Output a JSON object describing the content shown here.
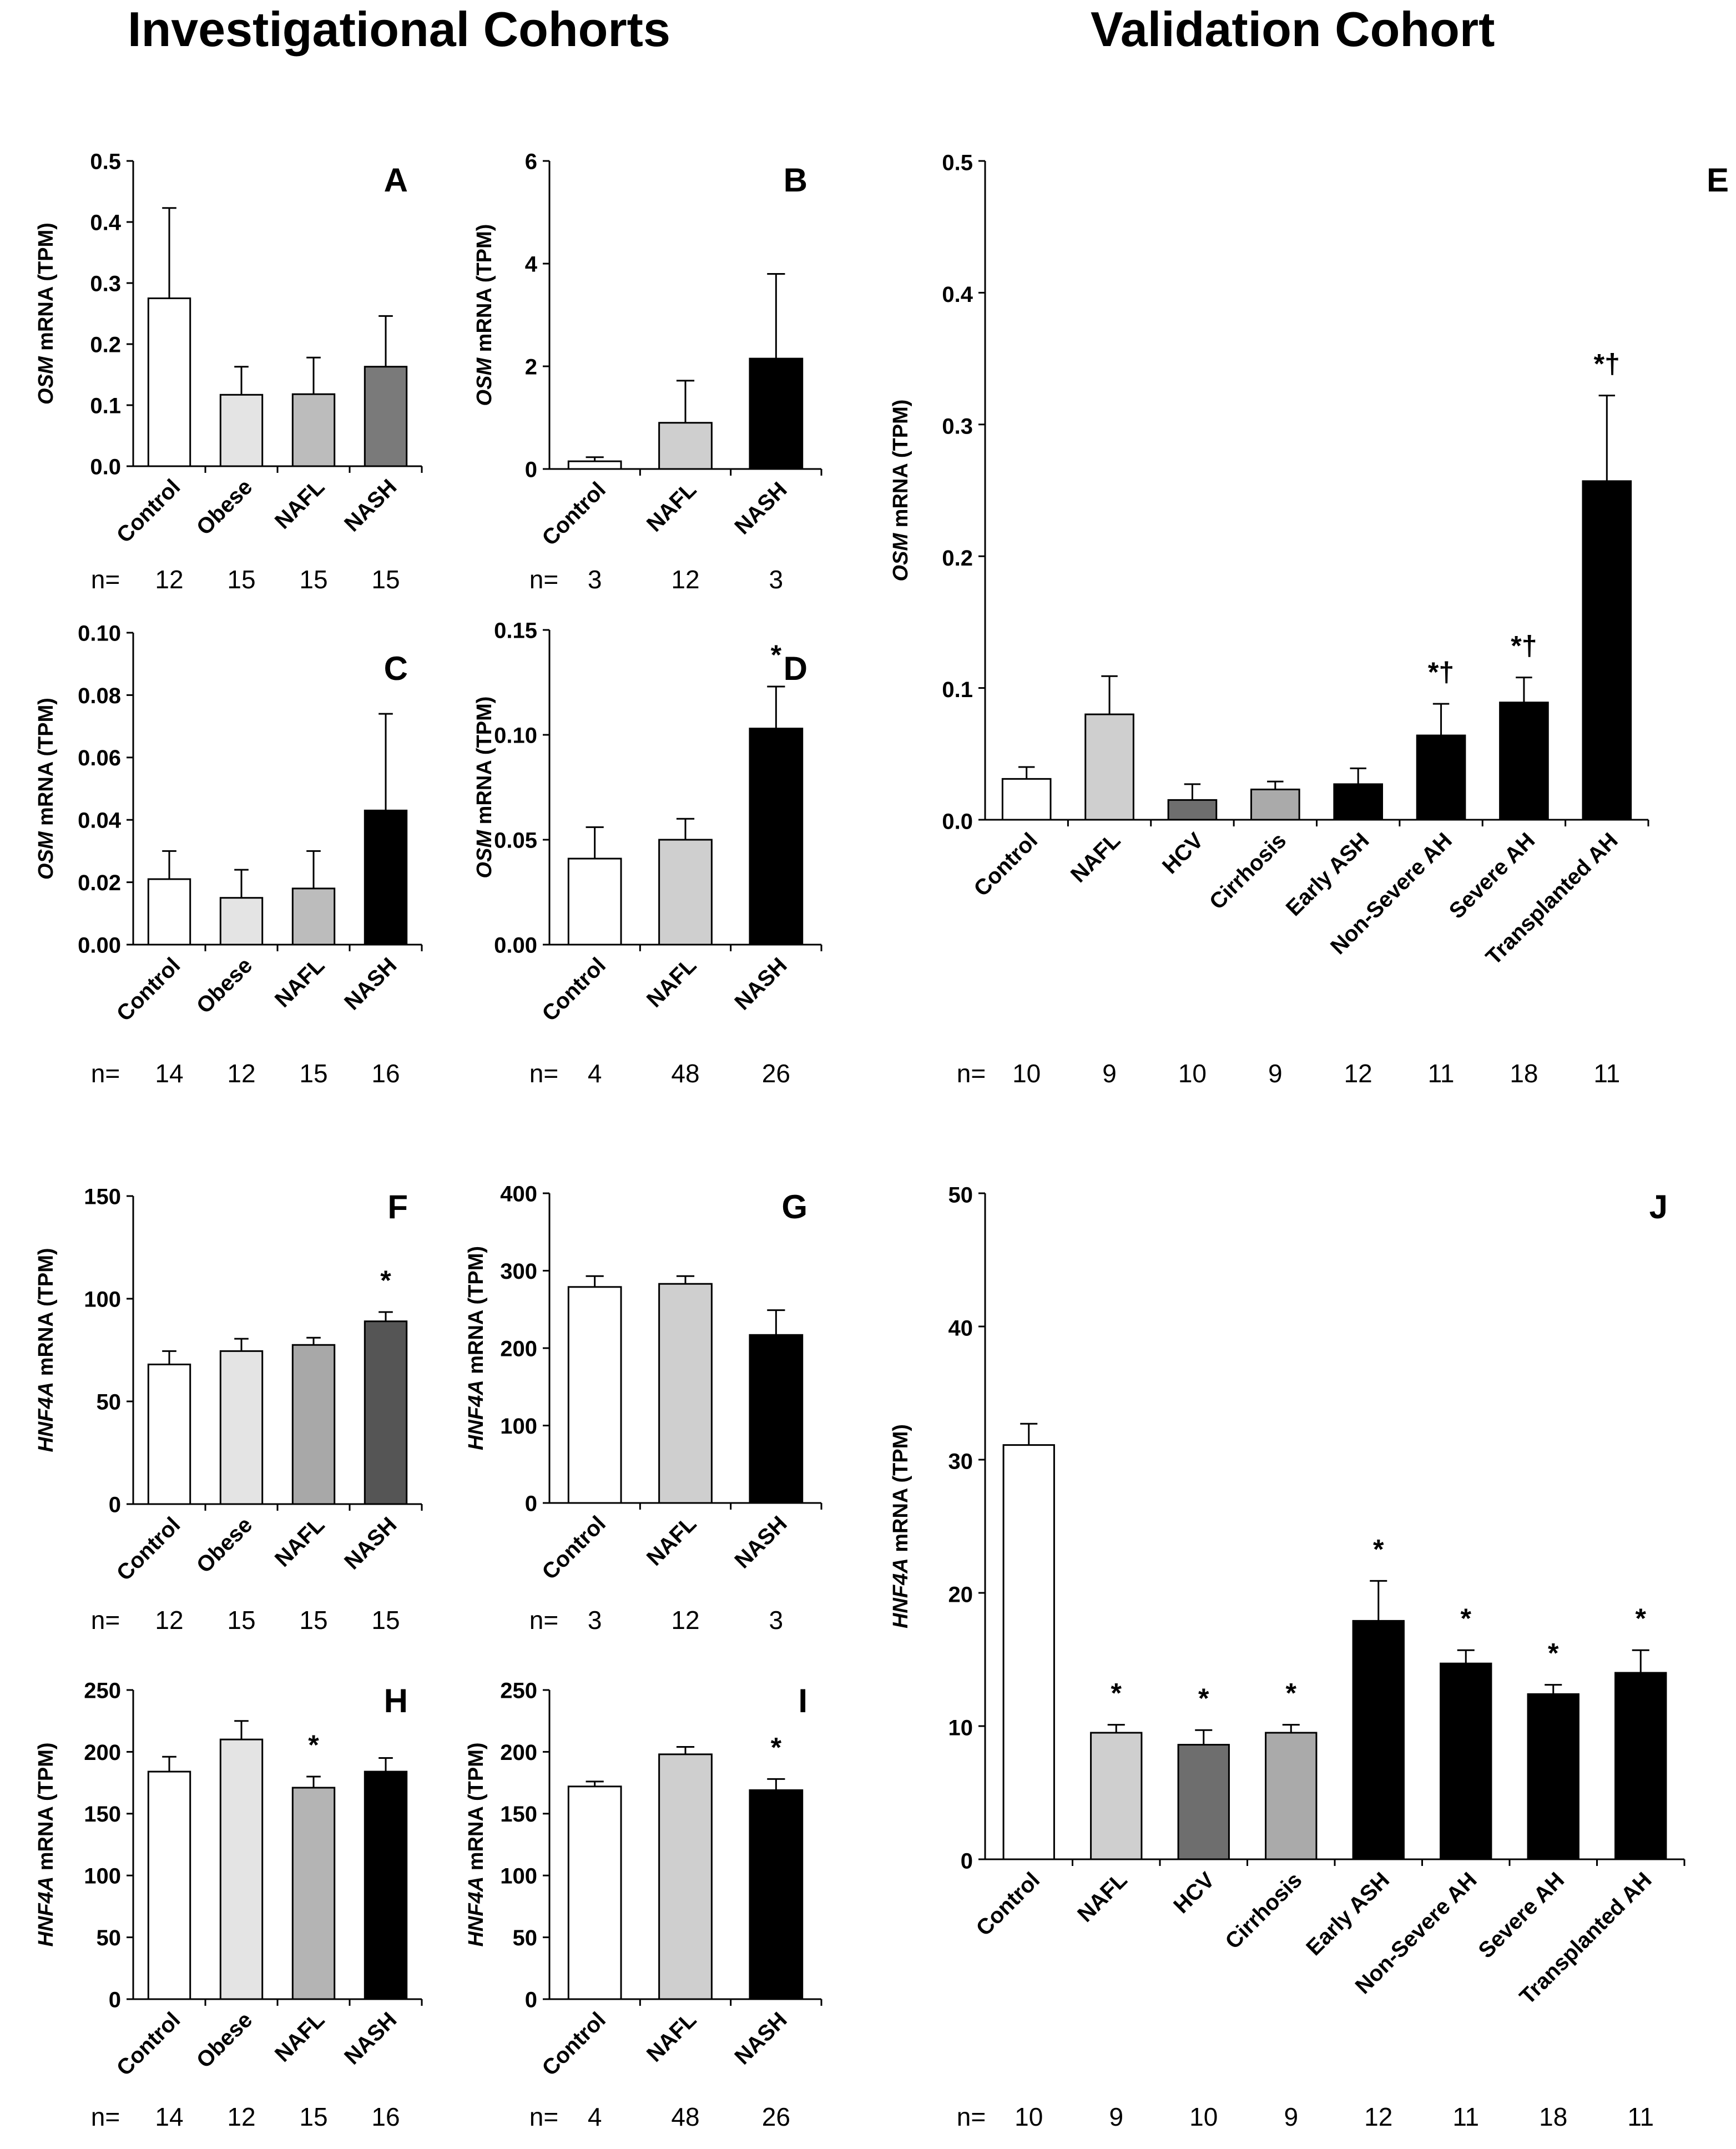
{
  "headings": {
    "left": "Investigational Cohorts",
    "right": "Validation Cohort"
  },
  "chart_data": [
    {
      "id": "A",
      "type": "bar",
      "letter": "A",
      "ylabel_gene": "OSM",
      "ylabel_rest": " mRNA (TPM)",
      "categories": [
        "Control",
        "Obese",
        "NAFL",
        "NASH"
      ],
      "values": [
        0.275,
        0.117,
        0.118,
        0.163
      ],
      "errors": [
        0.148,
        0.046,
        0.06,
        0.083
      ],
      "colors": [
        "#ffffff",
        "#e4e4e4",
        "#bcbcbc",
        "#7a7a7a"
      ],
      "annotations": [
        "",
        "",
        "",
        ""
      ],
      "ylim": [
        0,
        0.5
      ],
      "yticks": [
        "0.0",
        "0.1",
        "0.2",
        "0.3",
        "0.4",
        "0.5"
      ],
      "n_label": "n=",
      "n": [
        "12",
        "15",
        "15",
        "15"
      ]
    },
    {
      "id": "B",
      "type": "bar",
      "letter": "B",
      "ylabel_gene": "OSM",
      "ylabel_rest": " mRNA (TPM)",
      "categories": [
        "Control",
        "NAFL",
        "NASH"
      ],
      "values": [
        0.15,
        0.9,
        2.15
      ],
      "errors": [
        0.08,
        0.82,
        1.65
      ],
      "colors": [
        "#ffffff",
        "#cfcfcf",
        "#000000"
      ],
      "annotations": [
        "",
        "",
        ""
      ],
      "ylim": [
        0,
        6
      ],
      "yticks": [
        "0",
        "2",
        "4",
        "6"
      ],
      "n_label": "n=",
      "n": [
        "3",
        "12",
        "3"
      ]
    },
    {
      "id": "C",
      "type": "bar",
      "letter": "C",
      "ylabel_gene": "OSM",
      "ylabel_rest": " mRNA (TPM)",
      "categories": [
        "Control",
        "Obese",
        "NAFL",
        "NASH"
      ],
      "values": [
        0.021,
        0.015,
        0.018,
        0.043
      ],
      "errors": [
        0.009,
        0.009,
        0.012,
        0.031
      ],
      "colors": [
        "#ffffff",
        "#e4e4e4",
        "#bcbcbc",
        "#000000"
      ],
      "annotations": [
        "",
        "",
        "",
        ""
      ],
      "ylim": [
        0,
        0.1
      ],
      "yticks": [
        "0.00",
        "0.02",
        "0.04",
        "0.06",
        "0.08",
        "0.10"
      ],
      "n_label": "n=",
      "n": [
        "14",
        "12",
        "15",
        "16"
      ]
    },
    {
      "id": "D",
      "type": "bar",
      "letter": "D",
      "ylabel_gene": "OSM",
      "ylabel_rest": " mRNA (TPM)",
      "categories": [
        "Control",
        "NAFL",
        "NASH"
      ],
      "values": [
        0.041,
        0.05,
        0.103
      ],
      "errors": [
        0.015,
        0.01,
        0.02
      ],
      "colors": [
        "#ffffff",
        "#cfcfcf",
        "#000000"
      ],
      "annotations": [
        "",
        "",
        "*"
      ],
      "ylim": [
        0,
        0.15
      ],
      "yticks": [
        "0.00",
        "0.05",
        "0.10",
        "0.15"
      ],
      "n_label": "n=",
      "n": [
        "4",
        "48",
        "26"
      ]
    },
    {
      "id": "E",
      "type": "bar",
      "letter": "E",
      "ylabel_gene": "OSM",
      "ylabel_rest": " mRNA (TPM)",
      "categories": [
        "Control",
        "NAFL",
        "HCV",
        "Cirrhosis",
        "Early ASH",
        "Non-Severe AH",
        "Severe AH",
        "Transplanted AH"
      ],
      "values": [
        0.031,
        0.08,
        0.015,
        0.023,
        0.027,
        0.064,
        0.089,
        0.257
      ],
      "errors": [
        0.009,
        0.029,
        0.012,
        0.006,
        0.012,
        0.024,
        0.019,
        0.065
      ],
      "colors": [
        "#ffffff",
        "#cfcfcf",
        "#6e6e6e",
        "#aaaaaa",
        "#000000",
        "#000000",
        "#000000",
        "#000000"
      ],
      "annotations": [
        "",
        "",
        "",
        "",
        "",
        "*†",
        "*†",
        "*†"
      ],
      "ylim": [
        0,
        0.5
      ],
      "yticks": [
        "0.0",
        "0.1",
        "0.2",
        "0.3",
        "0.4",
        "0.5"
      ],
      "n_label": "n=",
      "n": [
        "10",
        "9",
        "10",
        "9",
        "12",
        "11",
        "18",
        "11"
      ]
    },
    {
      "id": "F",
      "type": "bar",
      "letter": "F",
      "ylabel_gene": "HNF4A",
      "ylabel_rest": " mRNA (TPM)",
      "categories": [
        "Control",
        "Obese",
        "NAFL",
        "NASH"
      ],
      "values": [
        68,
        74.5,
        77.5,
        89
      ],
      "errors": [
        6.5,
        6,
        3.5,
        4.5
      ],
      "colors": [
        "#ffffff",
        "#e4e4e4",
        "#a8a8a8",
        "#555555"
      ],
      "annotations": [
        "",
        "",
        "",
        "*"
      ],
      "ylim": [
        0,
        150
      ],
      "yticks": [
        "0",
        "50",
        "100",
        "150"
      ],
      "n_label": "n=",
      "n": [
        "12",
        "15",
        "15",
        "15"
      ]
    },
    {
      "id": "G",
      "type": "bar",
      "letter": "G",
      "ylabel_gene": "HNF4A",
      "ylabel_rest": " mRNA (TPM)",
      "categories": [
        "Control",
        "NAFL",
        "NASH"
      ],
      "values": [
        279,
        283,
        217
      ],
      "errors": [
        14,
        10,
        32
      ],
      "colors": [
        "#ffffff",
        "#cfcfcf",
        "#000000"
      ],
      "annotations": [
        "",
        "",
        ""
      ],
      "ylim": [
        0,
        400
      ],
      "yticks": [
        "0",
        "100",
        "200",
        "300",
        "400"
      ],
      "n_label": "n=",
      "n": [
        "3",
        "12",
        "3"
      ]
    },
    {
      "id": "H",
      "type": "bar",
      "letter": "H",
      "ylabel_gene": "HNF4A",
      "ylabel_rest": " mRNA (TPM)",
      "categories": [
        "Control",
        "Obese",
        "NAFL",
        "NASH"
      ],
      "values": [
        184,
        210,
        171,
        184
      ],
      "errors": [
        12,
        15,
        9,
        11
      ],
      "colors": [
        "#ffffff",
        "#e4e4e4",
        "#b4b4b4",
        "#000000"
      ],
      "annotations": [
        "",
        "",
        "*",
        ""
      ],
      "ylim": [
        0,
        250
      ],
      "yticks": [
        "0",
        "50",
        "100",
        "150",
        "200",
        "250"
      ],
      "n_label": "n=",
      "n": [
        "14",
        "12",
        "15",
        "16"
      ]
    },
    {
      "id": "I",
      "type": "bar",
      "letter": "I",
      "ylabel_gene": "HNF4A",
      "ylabel_rest": " mRNA (TPM)",
      "categories": [
        "Control",
        "NAFL",
        "NASH"
      ],
      "values": [
        172,
        198,
        169
      ],
      "errors": [
        4,
        6,
        9
      ],
      "colors": [
        "#ffffff",
        "#cfcfcf",
        "#000000"
      ],
      "annotations": [
        "",
        "",
        "*"
      ],
      "ylim": [
        0,
        250
      ],
      "yticks": [
        "0",
        "50",
        "100",
        "150",
        "200",
        "250"
      ],
      "n_label": "n=",
      "n": [
        "4",
        "48",
        "26"
      ]
    },
    {
      "id": "J",
      "type": "bar",
      "letter": "J",
      "ylabel_gene": "HNF4A",
      "ylabel_rest": " mRNA (TPM)",
      "categories": [
        "Control",
        "NAFL",
        "HCV",
        "Cirrhosis",
        "Early ASH",
        "Non-Severe AH",
        "Severe AH",
        "Transplanted AH"
      ],
      "values": [
        31.1,
        9.5,
        8.6,
        9.5,
        17.9,
        14.7,
        12.4,
        14.0
      ],
      "errors": [
        1.6,
        0.6,
        1.1,
        0.6,
        3.0,
        1.0,
        0.7,
        1.7
      ],
      "colors": [
        "#ffffff",
        "#cfcfcf",
        "#6e6e6e",
        "#aaaaaa",
        "#000000",
        "#000000",
        "#000000",
        "#000000"
      ],
      "annotations": [
        "",
        "*",
        "*",
        "*",
        "*",
        "*",
        "*",
        "*"
      ],
      "ylim": [
        0,
        50
      ],
      "yticks": [
        "0",
        "10",
        "20",
        "30",
        "40",
        "50"
      ],
      "n_label": "n=",
      "n": [
        "10",
        "9",
        "10",
        "9",
        "12",
        "11",
        "18",
        "11"
      ]
    }
  ]
}
